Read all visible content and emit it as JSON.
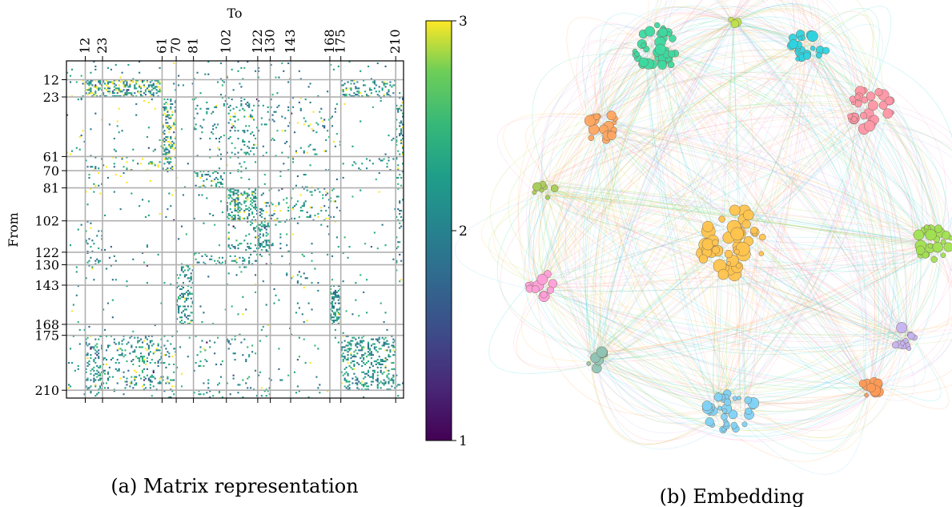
{
  "chart_data": [
    {
      "type": "heatmap",
      "caption": "(a) Matrix representation",
      "xlabel": "To",
      "ylabel": "From",
      "size": 215,
      "ticks": [
        12,
        23,
        61,
        70,
        81,
        102,
        122,
        130,
        143,
        168,
        175,
        210
      ],
      "tick_labels": [
        "12",
        "23",
        "61",
        "70",
        "81",
        "102",
        "122",
        "130",
        "143",
        "168",
        "175",
        "210"
      ],
      "colorbar": {
        "range": [
          1,
          3
        ],
        "ticks": [
          "1",
          "2",
          "3"
        ],
        "colormap": "viridis"
      },
      "grid": true,
      "block_density": [
        [
          0.02,
          0.04,
          0.02,
          0.01,
          0.01,
          0.02,
          0.06,
          0.03,
          0.02,
          0.01,
          0.01,
          0.02,
          0.01
        ],
        [
          0.04,
          0.45,
          0.35,
          0.02,
          0.01,
          0.02,
          0.01,
          0.01,
          0.02,
          0.01,
          0.01,
          0.2,
          0.01
        ],
        [
          0.02,
          0.02,
          0.02,
          0.32,
          0.01,
          0.05,
          0.12,
          0.05,
          0.04,
          0.05,
          0.02,
          0.01,
          0.25
        ],
        [
          0.01,
          0.1,
          0.08,
          0.25,
          0.02,
          0.01,
          0.06,
          0.02,
          0.02,
          0.03,
          0.01,
          0.05,
          0.12
        ],
        [
          0.01,
          0.06,
          0.02,
          0.02,
          0.02,
          0.25,
          0.04,
          0.01,
          0.01,
          0.02,
          0.01,
          0.01,
          0.1
        ],
        [
          0.01,
          0.01,
          0.01,
          0.01,
          0.01,
          0.01,
          0.3,
          0.15,
          0.08,
          0.1,
          0.05,
          0.01,
          0.12
        ],
        [
          0.01,
          0.08,
          0.01,
          0.01,
          0.01,
          0.01,
          0.1,
          0.35,
          0.06,
          0.02,
          0.02,
          0.01,
          0.1
        ],
        [
          0.01,
          0.05,
          0.02,
          0.01,
          0.01,
          0.1,
          0.12,
          0.12,
          0.04,
          0.02,
          0.01,
          0.01,
          0.05
        ],
        [
          0.01,
          0.01,
          0.01,
          0.01,
          0.2,
          0.01,
          0.03,
          0.02,
          0.01,
          0.02,
          0.05,
          0.01,
          0.02
        ],
        [
          0.01,
          0.01,
          0.01,
          0.01,
          0.25,
          0.01,
          0.02,
          0.01,
          0.01,
          0.02,
          0.4,
          0.01,
          0.02
        ],
        [
          0.01,
          0.01,
          0.01,
          0.01,
          0.01,
          0.01,
          0.01,
          0.01,
          0.01,
          0.01,
          0.01,
          0.01,
          0.01
        ],
        [
          0.02,
          0.25,
          0.15,
          0.1,
          0.01,
          0.03,
          0.05,
          0.02,
          0.02,
          0.02,
          0.01,
          0.25,
          0.02
        ],
        [
          0.01,
          0.08,
          0.01,
          0.15,
          0.01,
          0.06,
          0.05,
          0.06,
          0.02,
          0.01,
          0.01,
          0.01,
          0.02
        ]
      ],
      "block_yellow_share": [
        0.0,
        0.25,
        0.25,
        0.25,
        0.25,
        0.25,
        0.05,
        0.05,
        0.05,
        0.05,
        0.05,
        0.05,
        0.05
      ]
    },
    {
      "type": "scatter",
      "caption": "(b) Embedding",
      "clusters": [
        {
          "color": "#ffc44d",
          "x": 0.0,
          "y": 0.04,
          "count": 48,
          "radius": 0.085
        },
        {
          "color": "#3dd9a0",
          "x": -0.18,
          "y": -0.43,
          "count": 38,
          "radius": 0.06
        },
        {
          "color": "#2ed3e0",
          "x": 0.18,
          "y": -0.43,
          "count": 22,
          "radius": 0.05
        },
        {
          "color": "#bfe04a",
          "x": 0.0,
          "y": -0.49,
          "count": 3,
          "radius": 0.01
        },
        {
          "color": "#ff95a6",
          "x": 0.33,
          "y": -0.28,
          "count": 30,
          "radius": 0.055
        },
        {
          "color": "#ffa560",
          "x": -0.32,
          "y": -0.24,
          "count": 18,
          "radius": 0.04
        },
        {
          "color": "#a8cc58",
          "x": -0.45,
          "y": -0.09,
          "count": 8,
          "radius": 0.03
        },
        {
          "color": "#a0e050",
          "x": 0.48,
          "y": 0.04,
          "count": 26,
          "radius": 0.045
        },
        {
          "color": "#ff9ed9",
          "x": -0.46,
          "y": 0.14,
          "count": 12,
          "radius": 0.035
        },
        {
          "color": "#c5b3f2",
          "x": 0.41,
          "y": 0.27,
          "count": 12,
          "radius": 0.03
        },
        {
          "color": "#ff9a55",
          "x": 0.33,
          "y": 0.39,
          "count": 10,
          "radius": 0.025
        },
        {
          "color": "#8fc4b4",
          "x": -0.33,
          "y": 0.32,
          "count": 10,
          "radius": 0.03
        },
        {
          "color": "#7fd2f5",
          "x": -0.01,
          "y": 0.44,
          "count": 40,
          "radius": 0.06
        }
      ],
      "edge_colors": [
        "#a0e050",
        "#2ed3e0",
        "#ffc44d",
        "#ff95a6",
        "#ff9ed9",
        "#c5b3f2",
        "#7fd2f5",
        "#3dd9a0",
        "#ffa560"
      ]
    }
  ]
}
